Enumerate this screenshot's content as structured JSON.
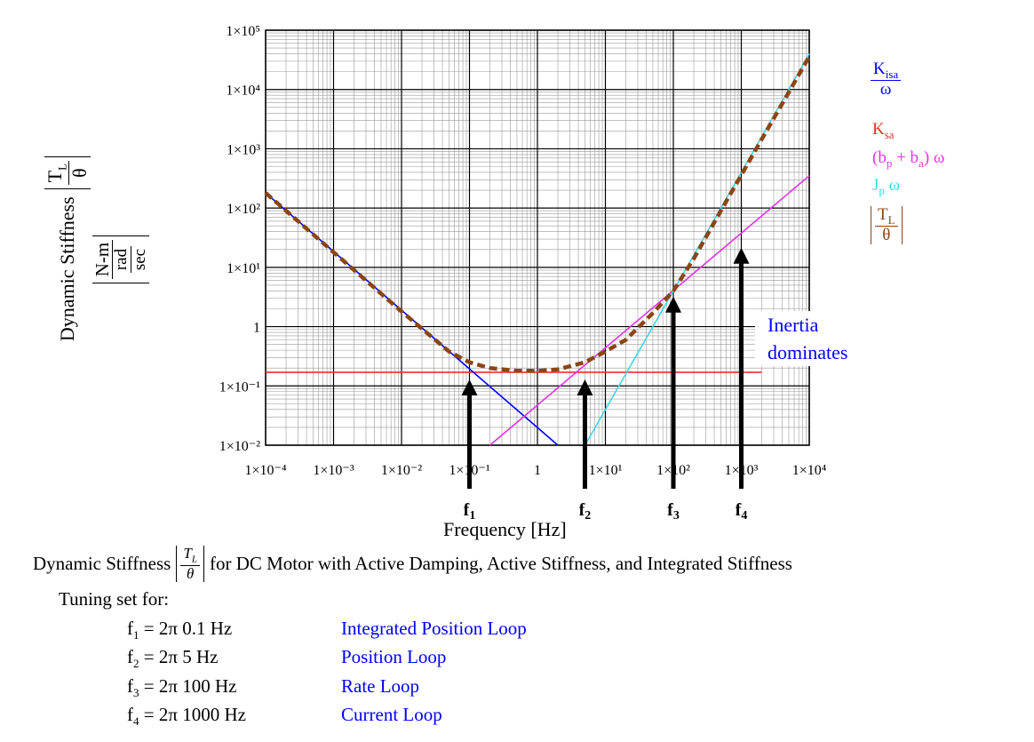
{
  "chart_data": {
    "type": "line",
    "x_scale": "log",
    "y_scale": "log",
    "xlim": [
      0.0001,
      10000
    ],
    "ylim": [
      0.01,
      100000
    ],
    "grid": true,
    "x_tick_labels": [
      "1×10⁻⁴",
      "1×10⁻³",
      "1×10⁻²",
      "1×10⁻¹",
      "1",
      "1×10¹",
      "1×10²",
      "1×10³",
      "1×10⁴"
    ],
    "x_tick_values": [
      0.0001,
      0.001,
      0.01,
      0.1,
      1,
      10,
      100,
      1000,
      10000
    ],
    "y_tick_labels": [
      "1×10⁻²",
      "1×10⁻¹",
      "1",
      "1×10¹",
      "1×10²",
      "1×10³",
      "1×10⁴",
      "1×10⁵"
    ],
    "y_tick_values": [
      0.01,
      0.1,
      1,
      10,
      100,
      1000,
      10000,
      100000
    ],
    "xlabel": "Frequency [Hz]",
    "ylabel": "Dynamic Stiffness",
    "ylabel_frac_num": "T",
    "ylabel_frac_num_sub": "L",
    "ylabel_frac_den": "θ",
    "yunit_num": "N-m",
    "yunit_den_num": "rad",
    "yunit_den_den": "sec",
    "legend": [
      {
        "label": "K",
        "sub": "isa",
        "den": "ω",
        "color": "#0000ff",
        "kind": "frac"
      },
      {
        "label": "K",
        "sub": "sa",
        "color": "#e8302a",
        "kind": "plain"
      },
      {
        "label": "(b",
        "sub": "p",
        "label2": " + b",
        "sub2": "a",
        "label3": ") ω",
        "color": "#e632e6",
        "kind": "sum"
      },
      {
        "label": "J",
        "sub": "p",
        "label2": " ω",
        "color": "#3fd6e6",
        "kind": "prod"
      },
      {
        "label": "T",
        "sub": "L",
        "den": "θ",
        "color": "#8b4513",
        "kind": "absfrac"
      }
    ],
    "series": [
      {
        "id": "kisa",
        "color": "#0000ff",
        "x": [
          0.0001,
          2
        ],
        "y": [
          180,
          0.01
        ]
      },
      {
        "id": "ksa",
        "color": "#e8302a",
        "x": [
          0.0001,
          2000
        ],
        "y": [
          0.17,
          0.17
        ]
      },
      {
        "id": "damp",
        "color": "#e632e6",
        "x": [
          0.2,
          10000
        ],
        "y": [
          0.01,
          350
        ]
      },
      {
        "id": "inertia",
        "color": "#3fd6e6",
        "x": [
          5,
          10000
        ],
        "y": [
          0.01,
          40000
        ]
      },
      {
        "id": "total",
        "color": "#8b4513",
        "dashed": true,
        "x": [
          0.0001,
          0.001,
          0.01,
          0.05,
          0.1,
          0.2,
          0.5,
          1,
          2,
          5,
          10,
          20,
          50,
          100,
          200,
          500,
          1000,
          2000,
          5000,
          10000
        ],
        "y": [
          180,
          18,
          1.8,
          0.38,
          0.25,
          0.2,
          0.18,
          0.18,
          0.19,
          0.25,
          0.38,
          0.6,
          1.7,
          4,
          14,
          90,
          360,
          1450,
          9000,
          36000
        ]
      }
    ],
    "annotations": [
      {
        "text": "Inertia",
        "text2": "dominates",
        "color": "#0000ff"
      }
    ],
    "arrows": [
      {
        "label": "f",
        "sub": "1",
        "x": 0.1,
        "tip_y": 0.12
      },
      {
        "label": "f",
        "sub": "2",
        "x": 5,
        "tip_y": 0.12
      },
      {
        "label": "f",
        "sub": "3",
        "x": 100,
        "tip_y": 3.0
      },
      {
        "label": "f",
        "sub": "4",
        "x": 1000,
        "tip_y": 20
      }
    ]
  },
  "caption": {
    "prefix": "Dynamic Stiffness",
    "frac_num": "T",
    "frac_num_sub": "L",
    "frac_den": "θ",
    "suffix": "for DC Motor with Active Damping, Active Stiffness, and Integrated Stiffness"
  },
  "tuning": {
    "heading": "Tuning set for:",
    "rows": [
      {
        "f": "f",
        "sub": "1",
        "eq": " =  2π 0.1 Hz",
        "loop": "Integrated Position Loop"
      },
      {
        "f": "f",
        "sub": "2",
        "eq": " =  2π 5 Hz",
        "loop": "Position Loop"
      },
      {
        "f": "f",
        "sub": "3",
        "eq": " =  2π 100 Hz",
        "loop": "Rate Loop"
      },
      {
        "f": "f",
        "sub": "4",
        "eq": " =  2π 1000 Hz",
        "loop": "Current Loop"
      }
    ],
    "loop_color": "#0000ff"
  }
}
